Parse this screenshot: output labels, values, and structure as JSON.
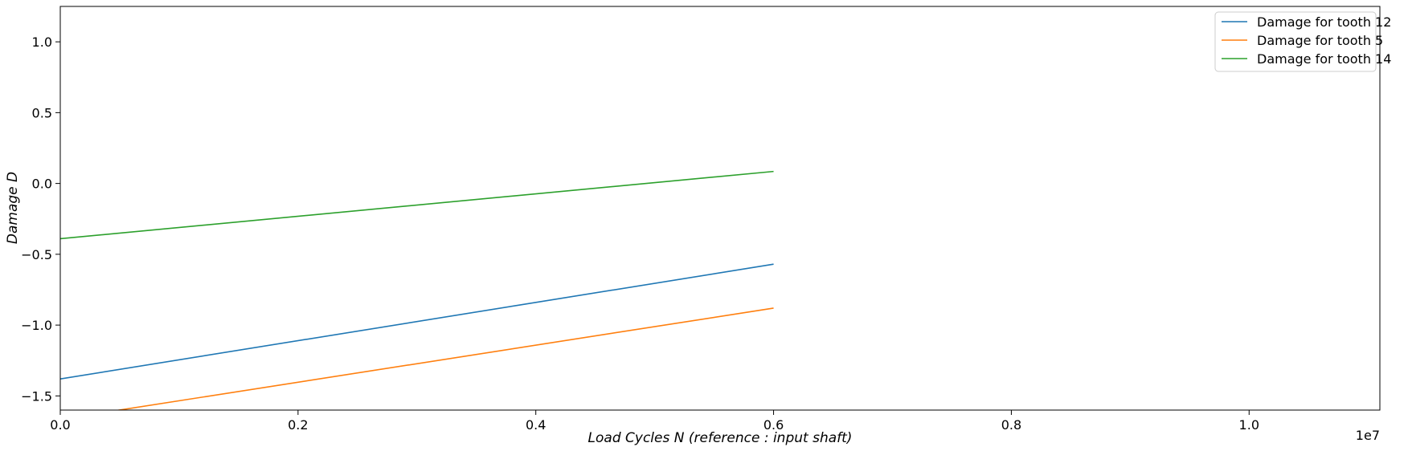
{
  "chart_data": {
    "type": "line",
    "xlabel": "Load Cycles N (reference :  input shaft)",
    "ylabel": "Damage D",
    "x_multiplier_label": "1e7",
    "xlim": [
      0,
      1.11
    ],
    "ylim": [
      -1.6,
      1.25
    ],
    "x_ticks": [
      0.0,
      0.2,
      0.4,
      0.6,
      0.8,
      1.0
    ],
    "x_tick_labels": [
      "0.0",
      "0.2",
      "0.4",
      "0.6",
      "0.8",
      "1.0"
    ],
    "y_ticks": [
      -1.5,
      -1.0,
      -0.5,
      0.0,
      0.5,
      1.0
    ],
    "y_tick_labels": [
      "−1.5",
      "−1.0",
      "−0.5",
      "0.0",
      "0.5",
      "1.0"
    ],
    "grid": false,
    "legend_position": "top-right",
    "series": [
      {
        "name": "Damage for tooth 12",
        "color": "#1f77b4",
        "x": [
          0.0,
          0.6
        ],
        "y": [
          -1.38,
          -0.57
        ]
      },
      {
        "name": "Damage for tooth 5",
        "color": "#ff7f0e",
        "x": [
          0.0,
          0.6
        ],
        "y": [
          -1.665,
          -0.88
        ]
      },
      {
        "name": "Damage for tooth 14",
        "color": "#2ca02c",
        "x": [
          0.0,
          0.6
        ],
        "y": [
          -0.39,
          0.085
        ]
      }
    ]
  }
}
